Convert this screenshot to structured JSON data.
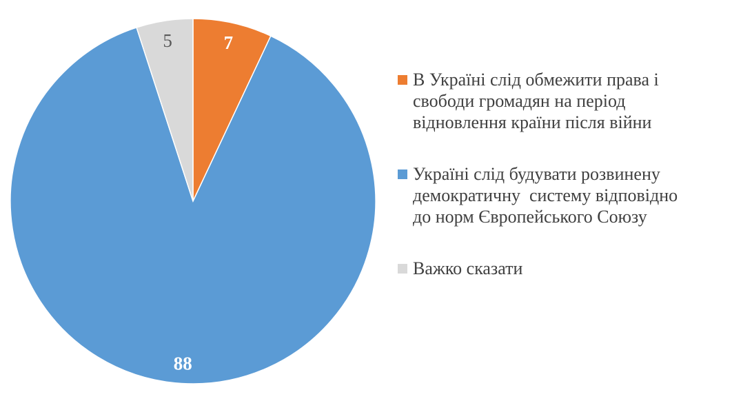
{
  "chart_data": {
    "type": "pie",
    "title": "",
    "unit": "percent",
    "start_angle_deg": 0,
    "direction": "clockwise",
    "legend_position": "right",
    "background_color": "#FFFFFF",
    "segments": [
      {
        "label": "В Україні слід обмежити права і свободи громадян на період відновлення країни після війни",
        "value": 7,
        "color": "#ED7D31",
        "value_label_color": "#FFFFFF"
      },
      {
        "label": "Україні слід будувати розвинену демократичну  систему відповідно до норм Європейського Союзу",
        "value": 88,
        "color": "#5B9BD5",
        "value_label_color": "#FFFFFF"
      },
      {
        "label": "Важко сказати",
        "value": 5,
        "color": "#D9D9D9",
        "value_label_color": "#595959"
      }
    ]
  },
  "legend": {
    "items": [
      {
        "lines": [
          "В Україні слід обмежити права і",
          "свободи громадян на період",
          "відновлення країни після війни"
        ]
      },
      {
        "lines": [
          "Україні слід будувати розвинену",
          "демократичну  систему відповідно",
          "до норм Європейського Союзу"
        ]
      },
      {
        "lines": [
          "Важко сказати"
        ]
      }
    ]
  }
}
